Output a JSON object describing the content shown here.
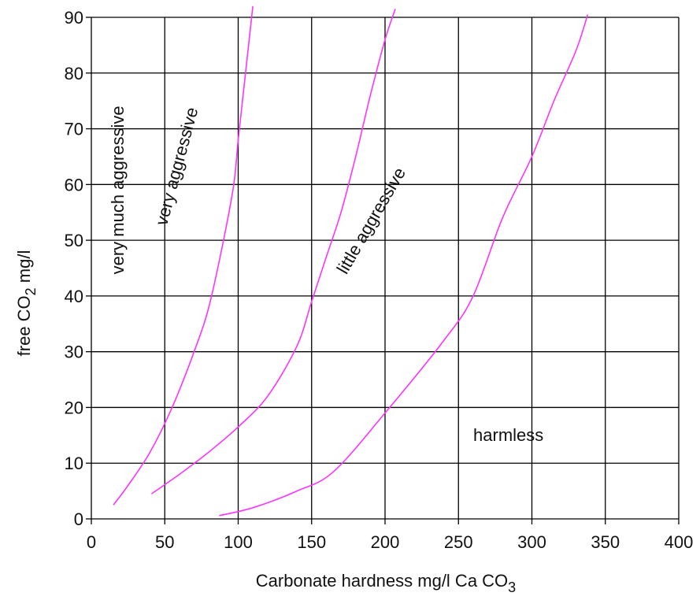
{
  "chart_data": {
    "type": "line",
    "xlabel_main": "Carbonate hardness mg/l Ca CO",
    "xlabel_sub": "3",
    "ylabel_main": "free CO",
    "ylabel_sub": "2",
    "ylabel_unit": "mg/l",
    "xlim": [
      0,
      400
    ],
    "ylim": [
      0,
      90
    ],
    "x_ticks": [
      "0",
      "50",
      "100",
      "150",
      "200",
      "250",
      "300",
      "350",
      "400"
    ],
    "y_ticks": [
      "0",
      "10",
      "20",
      "30",
      "40",
      "50",
      "60",
      "70",
      "80",
      "90"
    ],
    "grid": true,
    "line_color": "#ff33ff",
    "series": [
      {
        "x": [
          15,
          25,
          40,
          55,
          70,
          80,
          90,
          97,
          100,
          105,
          110
        ],
        "y": [
          2.5,
          6,
          12,
          20,
          30,
          38,
          50,
          60,
          68,
          80,
          92
        ]
      },
      {
        "x": [
          41,
          60,
          80,
          100,
          120,
          140,
          150,
          160,
          170,
          180,
          190,
          200,
          207
        ],
        "y": [
          4.5,
          8,
          12,
          16.5,
          22,
          31,
          39,
          47,
          55,
          65,
          76,
          86,
          91.5
        ]
      },
      {
        "x": [
          87,
          110,
          140,
          165,
          200,
          240,
          260,
          280,
          300,
          315,
          330,
          338
        ],
        "y": [
          0.6,
          2,
          5,
          8.5,
          19,
          32,
          40,
          54,
          65,
          75,
          84,
          90.5
        ]
      }
    ],
    "region_labels": [
      {
        "text": "very much aggressive",
        "x": 22,
        "y": 59,
        "angle": -90
      },
      {
        "text": "very aggressive",
        "x": 62,
        "y": 63,
        "angle": -75
      },
      {
        "text": "little aggressive",
        "x": 194,
        "y": 53,
        "angle": -60
      },
      {
        "text": "harmless",
        "x": 284,
        "y": 14,
        "angle": 0
      }
    ]
  }
}
